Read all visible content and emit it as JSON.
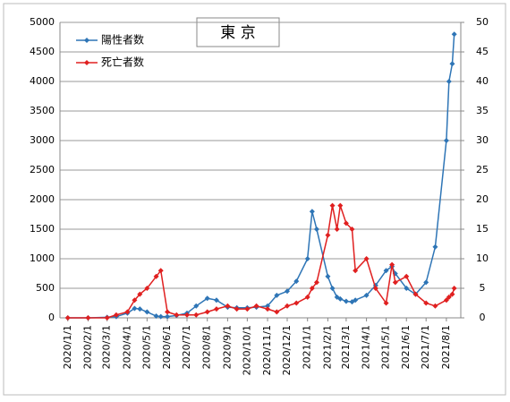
{
  "chart_data": {
    "type": "line",
    "title": "東 京",
    "x": [
      "2020/1/1",
      "2020/2/1",
      "2020/3/1",
      "2020/3/15",
      "2020/4/1",
      "2020/4/12",
      "2020/4/20",
      "2020/5/1",
      "2020/5/15",
      "2020/5/22",
      "2020/6/1",
      "2020/6/15",
      "2020/7/1",
      "2020/7/15",
      "2020/8/1",
      "2020/8/15",
      "2020/9/1",
      "2020/9/15",
      "2020/10/1",
      "2020/10/15",
      "2020/11/1",
      "2020/11/15",
      "2020/12/1",
      "2020/12/15",
      "2021/1/1",
      "2021/1/8",
      "2021/1/15",
      "2021/2/1",
      "2021/2/8",
      "2021/2/15",
      "2021/2/20",
      "2021/3/1",
      "2021/3/10",
      "2021/3/15",
      "2021/4/1",
      "2021/4/15",
      "2021/5/1",
      "2021/5/10",
      "2021/5/15",
      "2021/6/1",
      "2021/6/15",
      "2021/7/1",
      "2021/7/15",
      "2021/8/1",
      "2021/8/5",
      "2021/8/10",
      "2021/8/13"
    ],
    "series": [
      {
        "name": "陽性者数",
        "color": "#2e75b6",
        "values": [
          0,
          0,
          10,
          20,
          80,
          160,
          150,
          100,
          30,
          20,
          20,
          40,
          80,
          200,
          330,
          300,
          180,
          170,
          170,
          180,
          200,
          380,
          450,
          620,
          1000,
          1800,
          1500,
          700,
          500,
          350,
          320,
          280,
          270,
          300,
          380,
          550,
          800,
          870,
          750,
          500,
          400,
          600,
          1200,
          3000,
          4000,
          4300,
          4800
        ]
      },
      {
        "name": "死亡者数",
        "color": "#e02020",
        "axis": "y2",
        "values": [
          0,
          0,
          0,
          0.5,
          1,
          3,
          4,
          5,
          7,
          8,
          1,
          0.5,
          0.5,
          0.5,
          1,
          1.5,
          2,
          1.5,
          1.5,
          2,
          1.5,
          1,
          2,
          2.5,
          3.5,
          5,
          6,
          14,
          19,
          15,
          19,
          16,
          15,
          8,
          10,
          5,
          2.5,
          9,
          6,
          7,
          4,
          2.5,
          2,
          3,
          3.5,
          4,
          5
        ]
      }
    ],
    "xlim": [
      "2019/12/20",
      "2021/8/23"
    ],
    "xticks": [
      "2020/1/1",
      "2020/2/1",
      "2020/3/1",
      "2020/4/1",
      "2020/5/1",
      "2020/6/1",
      "2020/7/1",
      "2020/8/1",
      "2020/9/1",
      "2020/10/1",
      "2020/11/1",
      "2020/12/1",
      "2021/1/1",
      "2021/2/1",
      "2021/3/1",
      "2021/4/1",
      "2021/5/1",
      "2021/6/1",
      "2021/7/1",
      "2021/8/1"
    ],
    "ylim": [
      0,
      5000
    ],
    "yticks": [
      0,
      500,
      1000,
      1500,
      2000,
      2500,
      3000,
      3500,
      4000,
      4500,
      5000
    ],
    "y2lim": [
      0,
      50
    ],
    "y2ticks": [
      0,
      5,
      10,
      15,
      20,
      25,
      30,
      35,
      40,
      45,
      50
    ],
    "grid": true,
    "legend": "upper left"
  }
}
